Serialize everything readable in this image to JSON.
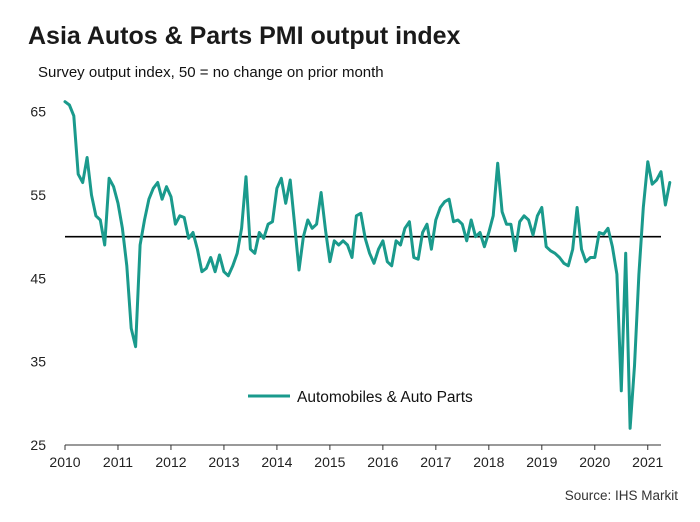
{
  "chart_data": {
    "type": "line",
    "title": "Asia Autos & Parts PMI output index",
    "subtitle": "Survey output index, 50 = no change on prior month",
    "source": "Source: IHS Markit",
    "xlabel": "",
    "ylabel": "",
    "xlim": [
      2010,
      2021.25
    ],
    "ylim": [
      25,
      67
    ],
    "yticks": [
      25,
      35,
      45,
      55,
      65
    ],
    "xticks": [
      2010,
      2011,
      2012,
      2013,
      2014,
      2015,
      2016,
      2017,
      2018,
      2019,
      2020,
      2021
    ],
    "reference_line": 50,
    "legend_position": "lower-center",
    "colors": {
      "series": "#1a9a8c",
      "reference": "#000000"
    },
    "series": [
      {
        "name": "Automobiles & Auto Parts",
        "start": 2010.0,
        "step_months": 1,
        "values": [
          66.2,
          65.8,
          64.5,
          57.5,
          56.5,
          59.5,
          55.0,
          52.5,
          52.0,
          49.0,
          57.0,
          56.0,
          54.0,
          51.0,
          46.5,
          39.0,
          36.8,
          49.0,
          52.0,
          54.5,
          55.8,
          56.5,
          54.5,
          56.0,
          54.8,
          51.5,
          52.5,
          52.3,
          49.8,
          50.5,
          48.5,
          45.8,
          46.2,
          47.5,
          45.8,
          47.8,
          45.8,
          45.3,
          46.5,
          48.0,
          51.0,
          57.2,
          48.5,
          48.0,
          50.5,
          49.8,
          51.5,
          51.8,
          55.8,
          57.0,
          54.0,
          56.8,
          51.5,
          46.0,
          50.0,
          52.0,
          51.0,
          51.5,
          55.3,
          50.8,
          47.0,
          49.5,
          49.0,
          49.5,
          49.0,
          47.5,
          52.5,
          52.8,
          49.8,
          48.0,
          46.8,
          48.5,
          49.5,
          47.0,
          46.5,
          49.5,
          49.0,
          51.0,
          51.8,
          47.5,
          47.3,
          50.5,
          51.5,
          48.5,
          52.0,
          53.5,
          54.2,
          54.5,
          51.8,
          52.0,
          51.5,
          49.5,
          52.0,
          50.0,
          50.5,
          48.8,
          50.5,
          52.5,
          58.8,
          53.0,
          51.5,
          51.5,
          48.3,
          51.8,
          52.5,
          52.0,
          50.2,
          52.5,
          53.5,
          48.8,
          48.3,
          48.0,
          47.5,
          46.8,
          46.5,
          48.5,
          53.5,
          48.5,
          47.0,
          47.5,
          47.5,
          50.5,
          50.3,
          51.0,
          48.8,
          45.5,
          31.5,
          48.0,
          27.0,
          34.5,
          45.5,
          53.5,
          59.0,
          56.3,
          56.8,
          57.8,
          53.8,
          56.5
        ]
      }
    ]
  }
}
